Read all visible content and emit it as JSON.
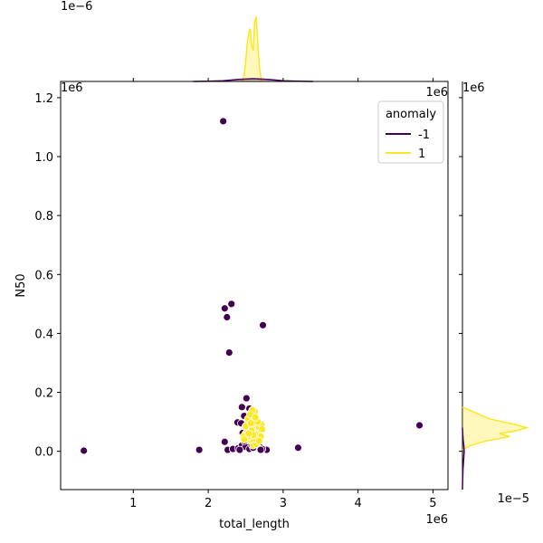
{
  "chart_data": {
    "type": "scatter",
    "title": "",
    "xlabel": "total_length",
    "ylabel": "N50",
    "x_multiplier_label": "1e6",
    "y_multiplier_label": "1e6",
    "xlim": [
      30000,
      5200000
    ],
    "ylim": [
      -130000,
      1255000
    ],
    "x_ticks": [
      1000000,
      2000000,
      3000000,
      4000000,
      5000000
    ],
    "x_tick_labels": [
      "1",
      "2",
      "3",
      "4",
      "5"
    ],
    "y_ticks": [
      0,
      200000,
      400000,
      600000,
      800000,
      1000000,
      1200000
    ],
    "y_tick_labels": [
      "0.0",
      "0.2",
      "0.4",
      "0.6",
      "0.8",
      "1.0",
      "1.2"
    ],
    "grid": false,
    "legend": {
      "title": "anomaly",
      "placement": "top-right",
      "entries": [
        {
          "label": "-1",
          "color": "#440154"
        },
        {
          "label": "1",
          "color": "#fde725"
        }
      ]
    },
    "series": [
      {
        "name": "-1",
        "color": "#440154",
        "points": [
          [
            2200000,
            1120000
          ],
          [
            2220000,
            485000
          ],
          [
            2310000,
            500000
          ],
          [
            2250000,
            455000
          ],
          [
            2730000,
            428000
          ],
          [
            2280000,
            335000
          ],
          [
            2510000,
            180000
          ],
          [
            2450000,
            150000
          ],
          [
            2550000,
            145000
          ],
          [
            2480000,
            120000
          ],
          [
            2390000,
            98000
          ],
          [
            2440000,
            95000
          ],
          [
            2520000,
            90000
          ],
          [
            2460000,
            62000
          ],
          [
            2570000,
            130000
          ],
          [
            4820000,
            88000
          ],
          [
            3200000,
            12000
          ],
          [
            2780000,
            5000
          ],
          [
            2220000,
            32000
          ],
          [
            1880000,
            5000
          ],
          [
            340000,
            2000
          ],
          [
            2260000,
            5000
          ],
          [
            2330000,
            8000
          ],
          [
            2400000,
            10000
          ],
          [
            2450000,
            20000
          ],
          [
            2500000,
            15000
          ],
          [
            2550000,
            8000
          ],
          [
            2600000,
            12000
          ],
          [
            2680000,
            18000
          ],
          [
            2720000,
            8000
          ],
          [
            2480000,
            35000
          ],
          [
            2650000,
            25000
          ],
          [
            2420000,
            5000
          ],
          [
            2580000,
            22000
          ],
          [
            2700000,
            5000
          ]
        ]
      },
      {
        "name": "1",
        "color": "#fde725",
        "points": [
          [
            2500000,
            60000
          ],
          [
            2520000,
            70000
          ],
          [
            2540000,
            80000
          ],
          [
            2560000,
            90000
          ],
          [
            2580000,
            100000
          ],
          [
            2600000,
            110000
          ],
          [
            2610000,
            75000
          ],
          [
            2620000,
            85000
          ],
          [
            2630000,
            95000
          ],
          [
            2640000,
            65000
          ],
          [
            2650000,
            55000
          ],
          [
            2660000,
            45000
          ],
          [
            2670000,
            70000
          ],
          [
            2680000,
            80000
          ],
          [
            2690000,
            60000
          ],
          [
            2700000,
            50000
          ],
          [
            2710000,
            90000
          ],
          [
            2550000,
            40000
          ],
          [
            2570000,
            50000
          ],
          [
            2590000,
            30000
          ],
          [
            2610000,
            120000
          ],
          [
            2620000,
            135000
          ],
          [
            2590000,
            140000
          ],
          [
            2600000,
            20000
          ],
          [
            2640000,
            25000
          ],
          [
            2470000,
            50000
          ],
          [
            2480000,
            40000
          ],
          [
            2530000,
            110000
          ],
          [
            2560000,
            125000
          ],
          [
            2660000,
            100000
          ],
          [
            2620000,
            60000
          ],
          [
            2640000,
            40000
          ],
          [
            2580000,
            70000
          ],
          [
            2600000,
            55000
          ],
          [
            2540000,
            60000
          ],
          [
            2680000,
            35000
          ],
          [
            2720000,
            75000
          ],
          [
            2500000,
            85000
          ],
          [
            2630000,
            115000
          ],
          [
            2570000,
            95000
          ]
        ]
      }
    ],
    "top_marginal": {
      "type": "kde",
      "multiplier_label": "1e−6",
      "axis": "x",
      "curves": [
        {
          "name": "1",
          "color": "#fde725",
          "fill": "rgba(253,231,37,0.30)",
          "x": [
            2440000,
            2460000,
            2480000,
            2500000,
            2520000,
            2540000,
            2560000,
            2580000,
            2600000,
            2620000,
            2640000,
            2660000,
            2680000,
            2700000,
            2720000
          ],
          "density": [
            0.0,
            0.03,
            0.1,
            0.3,
            0.55,
            0.72,
            0.78,
            0.52,
            0.46,
            0.88,
            0.96,
            0.6,
            0.25,
            0.08,
            0.0
          ]
        },
        {
          "name": "-1",
          "color": "#440154",
          "fill": "rgba(68,1,84,0.20)",
          "x": [
            1800000,
            2000000,
            2200000,
            2400000,
            2600000,
            2800000,
            3000000,
            3200000,
            3400000
          ],
          "density": [
            0.0,
            0.003,
            0.01,
            0.03,
            0.04,
            0.03,
            0.01,
            0.003,
            0.0
          ]
        }
      ]
    },
    "right_marginal": {
      "type": "kde",
      "multiplier_label": "1e−5",
      "axis": "y",
      "curves": [
        {
          "name": "1",
          "color": "#fde725",
          "fill": "rgba(253,231,37,0.30)",
          "y": [
            5000,
            20000,
            35000,
            50000,
            60000,
            70000,
            80000,
            90000,
            100000,
            110000,
            120000,
            130000,
            140000,
            150000
          ],
          "density": [
            0.0,
            0.12,
            0.35,
            0.7,
            0.55,
            0.8,
            0.95,
            0.8,
            0.6,
            0.4,
            0.3,
            0.2,
            0.1,
            0.0
          ]
        },
        {
          "name": "-1",
          "color": "#440154",
          "fill": "rgba(68,1,84,0.20)",
          "y": [
            -130000,
            -100000,
            -60000,
            -20000,
            0,
            20000,
            40000,
            60000,
            80000
          ],
          "density": [
            0.0,
            0.003,
            0.008,
            0.02,
            0.025,
            0.02,
            0.01,
            0.004,
            0.0
          ]
        }
      ]
    }
  }
}
